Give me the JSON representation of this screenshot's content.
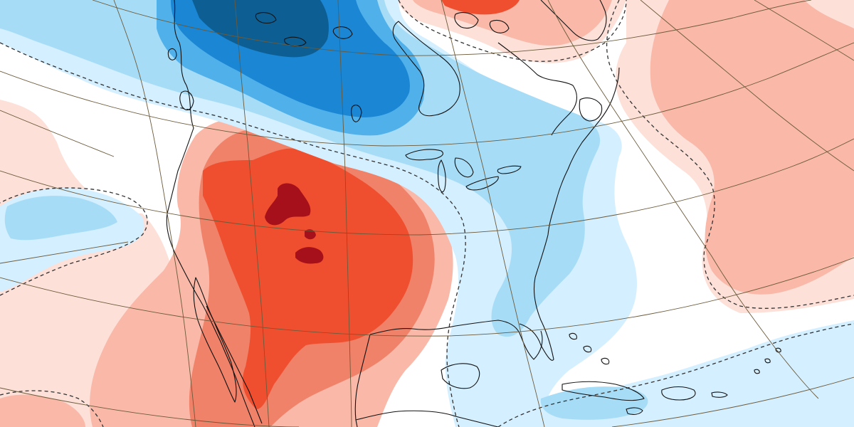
{
  "map": {
    "colors": {
      "background": "#ffffff",
      "cold_very_light": "#d4efff",
      "cold_light": "#a7dcf7",
      "cold_medium": "#4fb0ea",
      "cold_strong": "#1a86d4",
      "cold_very_strong": "#0d5f93",
      "warm_very_light": "#fde0d8",
      "warm_light": "#f9b8a8",
      "warm_medium": "#f0826a",
      "warm_strong": "#f04f2f",
      "warm_very_strong": "#a6101a",
      "coastline": "#111111",
      "graticule": "#6b5a3a",
      "zero_contour": "#333333"
    },
    "layers": [
      "anomaly-fill",
      "zero-contour",
      "coastlines",
      "graticule"
    ],
    "legend": "none",
    "labels": []
  }
}
